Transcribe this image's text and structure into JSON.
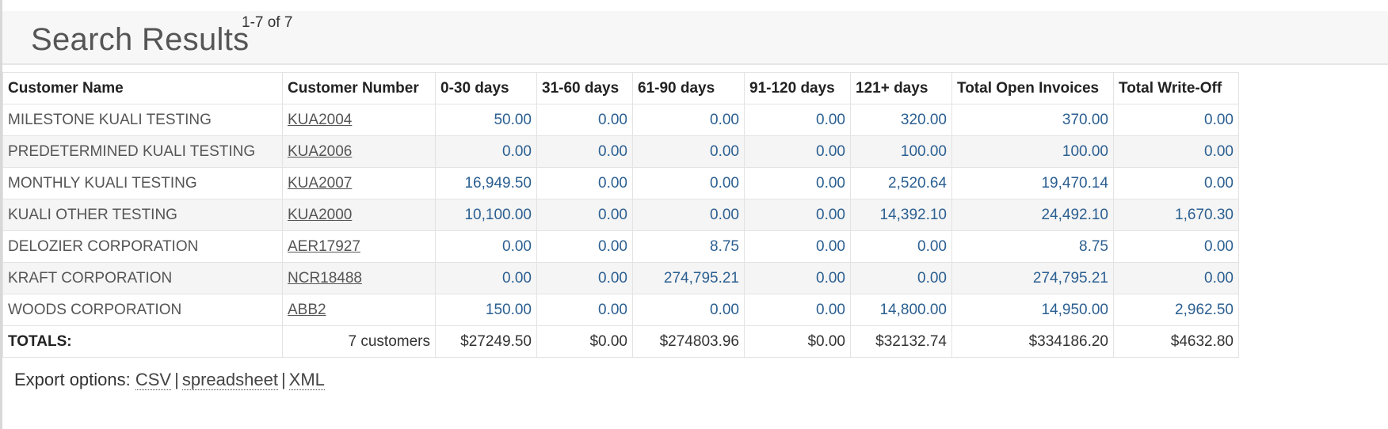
{
  "header": {
    "title": "Search Results",
    "range": "1-7 of 7"
  },
  "table": {
    "columns": [
      "Customer Name",
      "Customer Number",
      "0-30 days",
      "31-60 days",
      "61-90 days",
      "91-120 days",
      "121+ days",
      "Total Open Invoices",
      "Total Write-Off"
    ],
    "rows": [
      {
        "name": "MILESTONE KUALI TESTING",
        "number": "KUA2004",
        "d0_30": "50.00",
        "d31_60": "0.00",
        "d61_90": "0.00",
        "d91_120": "0.00",
        "d121": "320.00",
        "open": "370.00",
        "writeoff": "0.00"
      },
      {
        "name": "PREDETERMINED KUALI TESTING",
        "number": "KUA2006",
        "d0_30": "0.00",
        "d31_60": "0.00",
        "d61_90": "0.00",
        "d91_120": "0.00",
        "d121": "100.00",
        "open": "100.00",
        "writeoff": "0.00"
      },
      {
        "name": "MONTHLY KUALI TESTING",
        "number": "KUA2007",
        "d0_30": "16,949.50",
        "d31_60": "0.00",
        "d61_90": "0.00",
        "d91_120": "0.00",
        "d121": "2,520.64",
        "open": "19,470.14",
        "writeoff": "0.00"
      },
      {
        "name": "KUALI OTHER TESTING",
        "number": "KUA2000",
        "d0_30": "10,100.00",
        "d31_60": "0.00",
        "d61_90": "0.00",
        "d91_120": "0.00",
        "d121": "14,392.10",
        "open": "24,492.10",
        "writeoff": "1,670.30"
      },
      {
        "name": "DELOZIER CORPORATION",
        "number": "AER17927",
        "d0_30": "0.00",
        "d31_60": "0.00",
        "d61_90": "8.75",
        "d91_120": "0.00",
        "d121": "0.00",
        "open": "8.75",
        "writeoff": "0.00"
      },
      {
        "name": "KRAFT CORPORATION",
        "number": "NCR18488",
        "d0_30": "0.00",
        "d31_60": "0.00",
        "d61_90": "274,795.21",
        "d91_120": "0.00",
        "d121": "0.00",
        "open": "274,795.21",
        "writeoff": "0.00"
      },
      {
        "name": "WOODS CORPORATION",
        "number": "ABB2",
        "d0_30": "150.00",
        "d31_60": "0.00",
        "d61_90": "0.00",
        "d91_120": "0.00",
        "d121": "14,800.00",
        "open": "14,950.00",
        "writeoff": "2,962.50"
      }
    ],
    "totals": {
      "label": "TOTALS:",
      "customers": "7 customers",
      "d0_30": "$27249.50",
      "d31_60": "$0.00",
      "d61_90": "$274803.96",
      "d91_120": "$0.00",
      "d121": "$32132.74",
      "open": "$334186.20",
      "writeoff": "$4632.80"
    }
  },
  "export": {
    "label": "Export options:",
    "csv": "CSV",
    "spreadsheet": "spreadsheet",
    "xml": "XML",
    "separator": "|"
  }
}
